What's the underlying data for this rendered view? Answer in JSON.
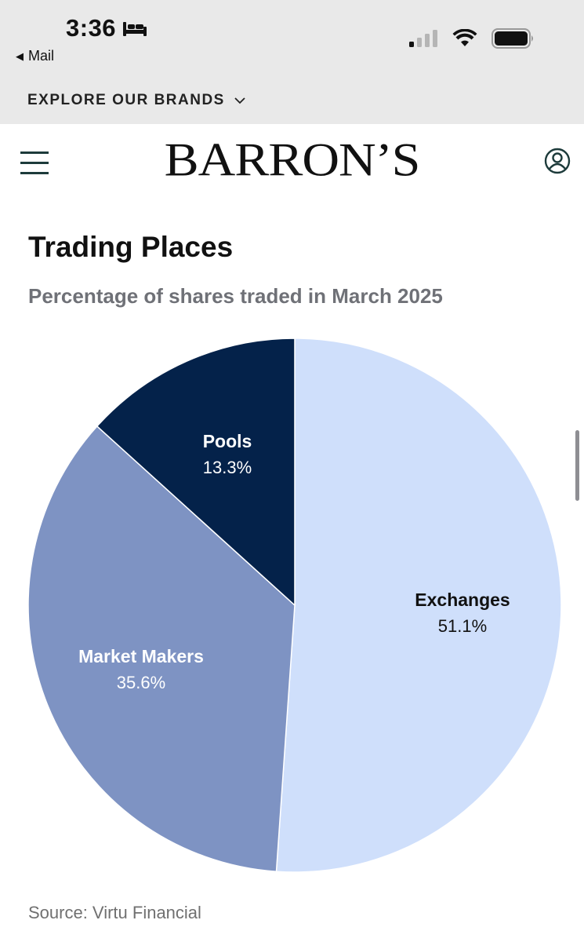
{
  "status_bar": {
    "time": "3:36",
    "back_label": "Mail"
  },
  "explore": {
    "label": "EXPLORE OUR BRANDS"
  },
  "header": {
    "logo": "BARRON’S"
  },
  "chart_title": "Trading Places",
  "chart_subtitle": "Percentage of shares traded in March 2025",
  "source": "Source: Virtu Financial",
  "colors": {
    "exchanges": "#cfdffb",
    "market_makers": "#7e93c3",
    "pools": "#04224a"
  },
  "chart_data": {
    "type": "pie",
    "title": "Trading Places",
    "subtitle": "Percentage of shares traded in March 2025",
    "slices": [
      {
        "label": "Exchanges",
        "value": 51.1,
        "display": "51.1%",
        "color": "#cfdffb",
        "text_color": "#111111"
      },
      {
        "label": "Market Makers",
        "value": 35.6,
        "display": "35.6%",
        "color": "#7e93c3",
        "text_color": "#ffffff"
      },
      {
        "label": "Pools",
        "value": 13.3,
        "display": "13.3%",
        "color": "#04224a",
        "text_color": "#ffffff"
      }
    ],
    "start": "12 o'clock",
    "direction": "clockwise",
    "source": "Source: Virtu Financial"
  }
}
